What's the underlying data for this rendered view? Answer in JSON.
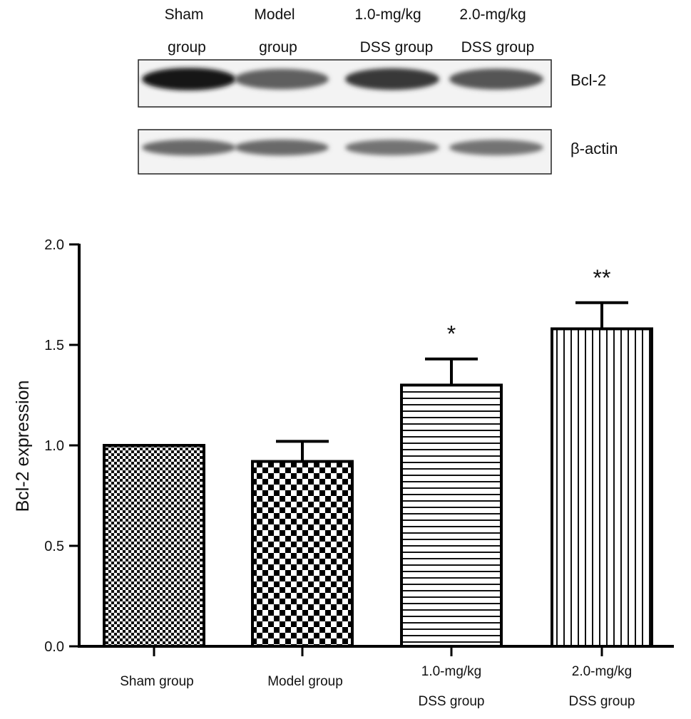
{
  "blot": {
    "columns": [
      {
        "line1": "Sham",
        "line2": "group"
      },
      {
        "line1": "Model",
        "line2": "group"
      },
      {
        "line1": "1.0-mg/kg",
        "line2": "DSS group"
      },
      {
        "line1": "2.0-mg/kg",
        "line2": "DSS group"
      }
    ],
    "rows": [
      {
        "label": "Bcl-2",
        "intensities": [
          0.95,
          0.6,
          0.8,
          0.65
        ]
      },
      {
        "label": "β-actin",
        "intensities": [
          0.55,
          0.55,
          0.5,
          0.5
        ]
      }
    ]
  },
  "chart_data": {
    "type": "bar",
    "categories": [
      {
        "line1": "Sham group",
        "line2": ""
      },
      {
        "line1": "Model group",
        "line2": ""
      },
      {
        "line1": "1.0-mg/kg",
        "line2": "DSS group"
      },
      {
        "line1": "2.0-mg/kg",
        "line2": "DSS group"
      }
    ],
    "values": [
      1.0,
      0.92,
      1.3,
      1.58
    ],
    "errors": [
      0.0,
      0.1,
      0.13,
      0.13
    ],
    "significance": [
      "",
      "",
      "*",
      "**"
    ],
    "patterns": [
      "dense-check",
      "checkerboard",
      "horizontal-lines",
      "vertical-lines"
    ],
    "ylabel": "Bcl-2 expression",
    "ylim": [
      0,
      2.0
    ],
    "yticks": [
      "0.0",
      "0.5",
      "1.0",
      "1.5",
      "2.0"
    ],
    "grid": false
  }
}
